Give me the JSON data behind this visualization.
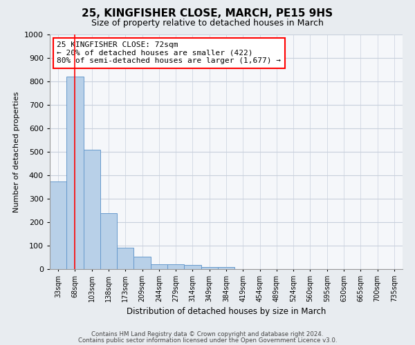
{
  "title": "25, KINGFISHER CLOSE, MARCH, PE15 9HS",
  "subtitle": "Size of property relative to detached houses in March",
  "xlabel": "Distribution of detached houses by size in March",
  "ylabel": "Number of detached properties",
  "bar_color": "#b8d0e8",
  "bar_edge_color": "#6699cc",
  "bar_categories": [
    "33sqm",
    "68sqm",
    "103sqm",
    "138sqm",
    "173sqm",
    "209sqm",
    "244sqm",
    "279sqm",
    "314sqm",
    "349sqm",
    "384sqm",
    "419sqm",
    "454sqm",
    "489sqm",
    "524sqm",
    "560sqm",
    "595sqm",
    "630sqm",
    "665sqm",
    "700sqm",
    "735sqm"
  ],
  "bar_values": [
    375,
    820,
    510,
    237,
    92,
    53,
    21,
    20,
    17,
    10,
    8,
    0,
    0,
    0,
    0,
    0,
    0,
    0,
    0,
    0,
    0
  ],
  "ylim": [
    0,
    1000
  ],
  "yticks": [
    0,
    100,
    200,
    300,
    400,
    500,
    600,
    700,
    800,
    900,
    1000
  ],
  "vline_x": 1.0,
  "annotation_line1": "25 KINGFISHER CLOSE: 72sqm",
  "annotation_line2": "← 20% of detached houses are smaller (422)",
  "annotation_line3": "80% of semi-detached houses are larger (1,677) →",
  "footer_line1": "Contains HM Land Registry data © Crown copyright and database right 2024.",
  "footer_line2": "Contains public sector information licensed under the Open Government Licence v3.0.",
  "background_color": "#e8ecf0",
  "plot_bg_color": "#f5f7fa",
  "grid_color": "#c8d0dc"
}
